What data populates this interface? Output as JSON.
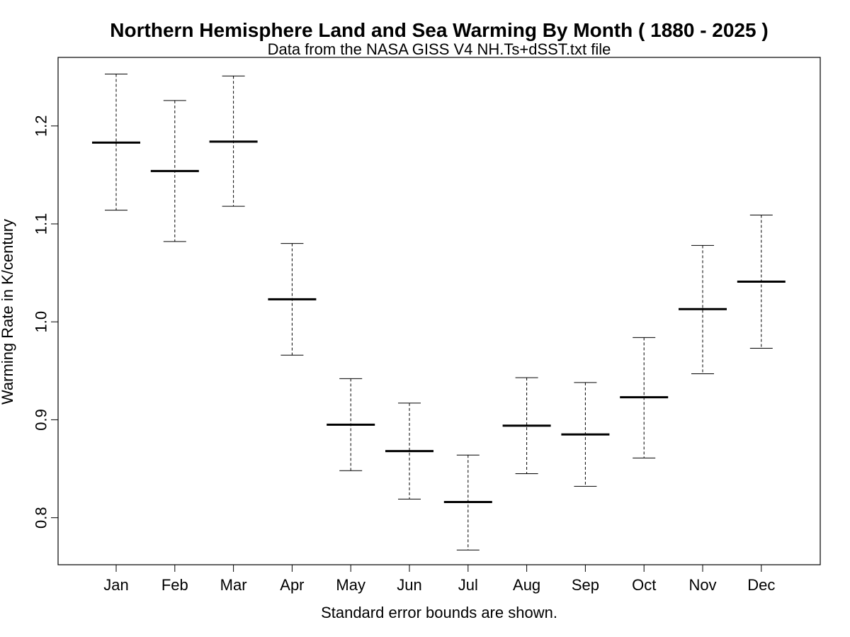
{
  "chart_data": {
    "type": "errorbar",
    "title": "Northern Hemisphere Land and Sea Warming By Month ( 1880 - 2025 )",
    "subtitle": "Data from the NASA GISS V4 NH.Ts+dSST.txt file",
    "xlabel": "Standard error bounds are shown.",
    "ylabel": "Warming Rate in K/century",
    "ylim": [
      0.752,
      1.27
    ],
    "yticks": [
      "0.8",
      "0.9",
      "1.0",
      "1.1",
      "1.2"
    ],
    "grid": false,
    "categories": [
      "Jan",
      "Feb",
      "Mar",
      "Apr",
      "May",
      "Jun",
      "Jul",
      "Aug",
      "Sep",
      "Oct",
      "Nov",
      "Dec"
    ],
    "values": [
      1.183,
      1.154,
      1.184,
      1.023,
      0.895,
      0.868,
      0.816,
      0.894,
      0.885,
      0.923,
      1.013,
      1.041
    ],
    "upper": [
      1.253,
      1.226,
      1.251,
      1.08,
      0.942,
      0.917,
      0.864,
      0.943,
      0.938,
      0.984,
      1.078,
      1.109
    ],
    "lower": [
      1.114,
      1.082,
      1.118,
      0.966,
      0.848,
      0.819,
      0.767,
      0.845,
      0.832,
      0.861,
      0.947,
      0.973
    ]
  }
}
